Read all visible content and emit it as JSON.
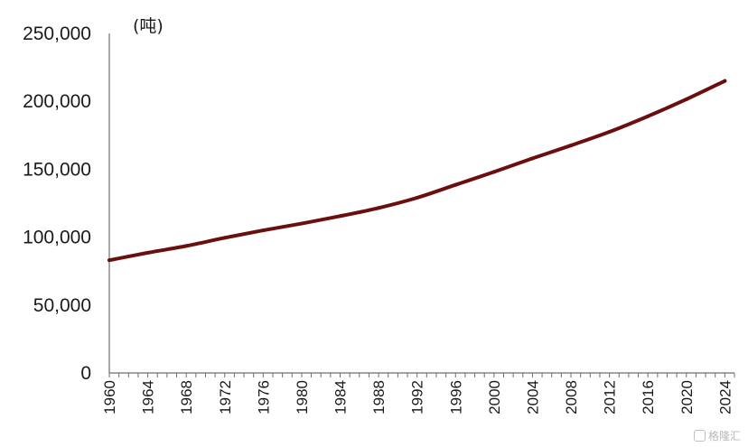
{
  "chart_data": {
    "type": "line",
    "title": "",
    "xlabel": "",
    "ylabel": "",
    "unit_label": "(吨)",
    "xlim": [
      1960,
      2025
    ],
    "ylim": [
      0,
      250000
    ],
    "y_ticks": [
      0,
      50000,
      100000,
      150000,
      200000,
      250000
    ],
    "y_tick_labels": [
      "0",
      "50,000",
      "100,000",
      "150,000",
      "200,000",
      "250,000"
    ],
    "x_ticks": [
      1960,
      1964,
      1968,
      1972,
      1976,
      1980,
      1984,
      1988,
      1992,
      1996,
      2000,
      2004,
      2008,
      2012,
      2016,
      2020,
      2024
    ],
    "x_tick_labels": [
      "1960",
      "1964",
      "1968",
      "1972",
      "1976",
      "1980",
      "1984",
      "1988",
      "1992",
      "1996",
      "2000",
      "2004",
      "2008",
      "2012",
      "2016",
      "2020",
      "2024"
    ],
    "grid": false,
    "legend": "none",
    "series": [
      {
        "color": "#6b0e0e",
        "x": [
          1960,
          1964,
          1968,
          1972,
          1976,
          1980,
          1984,
          1988,
          1992,
          1996,
          2000,
          2004,
          2008,
          2012,
          2016,
          2020,
          2024
        ],
        "values": [
          83000,
          88500,
          93500,
          99500,
          105000,
          110000,
          115500,
          121500,
          129000,
          138500,
          148000,
          158000,
          167500,
          177500,
          189000,
          201500,
          215000
        ]
      }
    ]
  },
  "watermark": {
    "text": "格隆汇"
  }
}
